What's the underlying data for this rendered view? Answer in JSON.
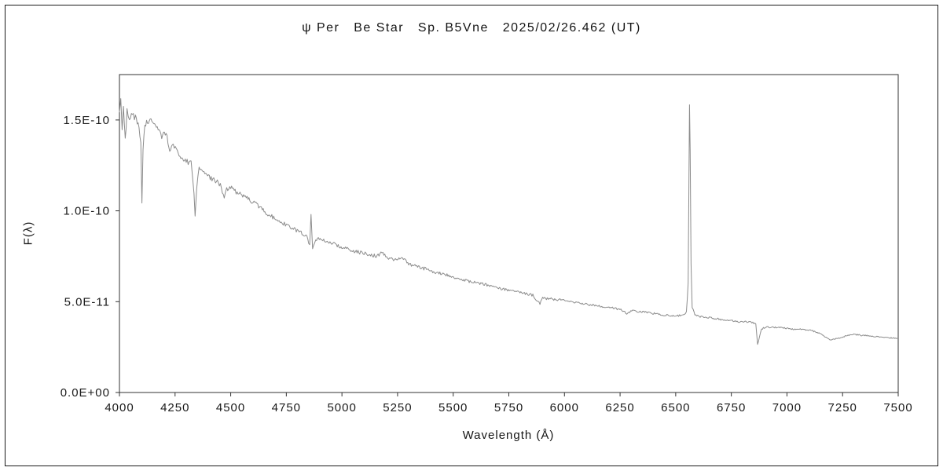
{
  "chart_data": {
    "type": "line",
    "title": "ψ Per   Be Star   Sp. B5Vne   2025/02/26.462 (UT)",
    "xlabel": "Wavelength (Å)",
    "ylabel": "F(λ)",
    "xlim": [
      4000,
      7500
    ],
    "ylim": [
      0,
      1.75e-10
    ],
    "grid": false,
    "legend": "none",
    "x_ticks": {
      "values": [
        4000,
        4250,
        4500,
        4750,
        5000,
        5250,
        5500,
        5750,
        6000,
        6250,
        6500,
        6750,
        7000,
        7250,
        7500
      ],
      "labels": [
        "4000",
        "4250",
        "4500",
        "4750",
        "5000",
        "5250",
        "5500",
        "5750",
        "6000",
        "6250",
        "6500",
        "6750",
        "7000",
        "7250",
        "7500"
      ]
    },
    "y_ticks": {
      "values": [
        0,
        5e-11,
        1e-10,
        1.5e-10
      ],
      "labels": [
        "0.0E+00",
        "5.0E-11",
        "1.0E-10",
        "1.5E-10"
      ]
    },
    "line_color": "#8c8c8c",
    "axis_color": "#333333",
    "noise_fraction": 0.013,
    "y_scale": 1e-11,
    "series": [
      {
        "name": "psi Per spectrum",
        "features": [
          "H-delta 4101 absorption",
          "H-gamma 4340 absorption",
          "He I 4471 absorption",
          "H-beta 4861 emission core",
          "He I 5876 / Na D absorption",
          "H-alpha 6563 strong emission peak 1.58E-10",
          "telluric O2 6868 absorption",
          "telluric H2O 7200 absorption"
        ],
        "points": [
          [
            4000,
            15.3
          ],
          [
            4006,
            16.2
          ],
          [
            4012,
            14.4
          ],
          [
            4018,
            15.9
          ],
          [
            4026,
            13.9
          ],
          [
            4034,
            15.5
          ],
          [
            4045,
            15.0
          ],
          [
            4058,
            15.4
          ],
          [
            4072,
            15.1
          ],
          [
            4088,
            14.7
          ],
          [
            4096,
            13.6
          ],
          [
            4101,
            10.3
          ],
          [
            4106,
            13.4
          ],
          [
            4114,
            14.8
          ],
          [
            4130,
            15.0
          ],
          [
            4150,
            14.8
          ],
          [
            4170,
            14.5
          ],
          [
            4190,
            14.1
          ],
          [
            4210,
            14.3
          ],
          [
            4226,
            13.3
          ],
          [
            4242,
            13.6
          ],
          [
            4260,
            13.2
          ],
          [
            4280,
            12.9
          ],
          [
            4300,
            12.7
          ],
          [
            4322,
            12.6
          ],
          [
            4335,
            11.0
          ],
          [
            4340,
            9.6
          ],
          [
            4347,
            11.3
          ],
          [
            4358,
            12.3
          ],
          [
            4380,
            12.1
          ],
          [
            4400,
            11.9
          ],
          [
            4420,
            11.7
          ],
          [
            4440,
            11.6
          ],
          [
            4458,
            11.3
          ],
          [
            4471,
            10.7
          ],
          [
            4482,
            11.2
          ],
          [
            4500,
            11.3
          ],
          [
            4520,
            11.1
          ],
          [
            4542,
            10.9
          ],
          [
            4562,
            10.8
          ],
          [
            4582,
            10.6
          ],
          [
            4605,
            10.5
          ],
          [
            4630,
            10.2
          ],
          [
            4658,
            9.9
          ],
          [
            4685,
            9.7
          ],
          [
            4713,
            9.4
          ],
          [
            4732,
            9.35
          ],
          [
            4755,
            9.2
          ],
          [
            4782,
            9.0
          ],
          [
            4812,
            8.8
          ],
          [
            4842,
            8.6
          ],
          [
            4855,
            8.1
          ],
          [
            4861,
            9.7
          ],
          [
            4868,
            8.0
          ],
          [
            4882,
            8.4
          ],
          [
            4902,
            8.5
          ],
          [
            4930,
            8.3
          ],
          [
            4962,
            8.2
          ],
          [
            5000,
            8.0
          ],
          [
            5040,
            7.85
          ],
          [
            5080,
            7.7
          ],
          [
            5120,
            7.6
          ],
          [
            5158,
            7.5
          ],
          [
            5180,
            7.7
          ],
          [
            5205,
            7.4
          ],
          [
            5232,
            7.3
          ],
          [
            5268,
            7.45
          ],
          [
            5300,
            7.1
          ],
          [
            5340,
            6.9
          ],
          [
            5380,
            6.8
          ],
          [
            5420,
            6.6
          ],
          [
            5460,
            6.5
          ],
          [
            5500,
            6.35
          ],
          [
            5540,
            6.2
          ],
          [
            5580,
            6.1
          ],
          [
            5620,
            6.0
          ],
          [
            5660,
            5.9
          ],
          [
            5700,
            5.75
          ],
          [
            5740,
            5.65
          ],
          [
            5780,
            5.55
          ],
          [
            5820,
            5.45
          ],
          [
            5858,
            5.35
          ],
          [
            5876,
            5.0
          ],
          [
            5890,
            4.9
          ],
          [
            5902,
            5.2
          ],
          [
            5940,
            5.15
          ],
          [
            5980,
            5.1
          ],
          [
            6020,
            5.0
          ],
          [
            6060,
            4.95
          ],
          [
            6100,
            4.85
          ],
          [
            6140,
            4.8
          ],
          [
            6180,
            4.7
          ],
          [
            6220,
            4.65
          ],
          [
            6258,
            4.55
          ],
          [
            6280,
            4.35
          ],
          [
            6302,
            4.5
          ],
          [
            6340,
            4.45
          ],
          [
            6380,
            4.4
          ],
          [
            6420,
            4.3
          ],
          [
            6460,
            4.25
          ],
          [
            6500,
            4.2
          ],
          [
            6530,
            4.25
          ],
          [
            6548,
            4.4
          ],
          [
            6556,
            6.0
          ],
          [
            6559,
            11.0
          ],
          [
            6562,
            15.8
          ],
          [
            6565,
            13.5
          ],
          [
            6569,
            7.0
          ],
          [
            6574,
            4.7
          ],
          [
            6586,
            4.3
          ],
          [
            6602,
            4.2
          ],
          [
            6630,
            4.15
          ],
          [
            6660,
            4.1
          ],
          [
            6690,
            4.05
          ],
          [
            6720,
            4.0
          ],
          [
            6750,
            3.95
          ],
          [
            6780,
            3.9
          ],
          [
            6812,
            3.9
          ],
          [
            6842,
            3.85
          ],
          [
            6860,
            3.8
          ],
          [
            6868,
            2.65
          ],
          [
            6876,
            3.0
          ],
          [
            6886,
            3.5
          ],
          [
            6902,
            3.6
          ],
          [
            6940,
            3.6
          ],
          [
            6980,
            3.55
          ],
          [
            7020,
            3.5
          ],
          [
            7060,
            3.5
          ],
          [
            7100,
            3.45
          ],
          [
            7140,
            3.3
          ],
          [
            7172,
            3.05
          ],
          [
            7200,
            2.9
          ],
          [
            7232,
            3.0
          ],
          [
            7262,
            3.1
          ],
          [
            7300,
            3.2
          ],
          [
            7340,
            3.15
          ],
          [
            7380,
            3.1
          ],
          [
            7420,
            3.05
          ],
          [
            7460,
            3.0
          ],
          [
            7500,
            3.0
          ]
        ]
      }
    ]
  }
}
